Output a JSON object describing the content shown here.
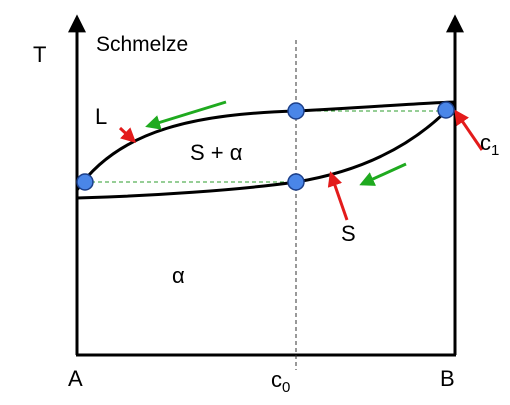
{
  "diagram": {
    "axis_t_label": "T",
    "region_melt": "Schmelze",
    "label_liquidus": "L",
    "region_two_phase": "S + α",
    "label_solidus": "S",
    "region_alpha": "α",
    "label_a": "A",
    "label_b": "B",
    "label_c0_main": "c",
    "label_c0_sub": "0",
    "label_c1_main": "c",
    "label_c1_sub": "1"
  },
  "colors": {
    "axis": "#000000",
    "curve": "#000000",
    "tie_line": "#2e9e2e",
    "green_arrow": "#1faa1f",
    "red_arrow": "#e31b1b",
    "point_fill": "#4a86e8",
    "point_stroke": "#1c3f8a"
  }
}
